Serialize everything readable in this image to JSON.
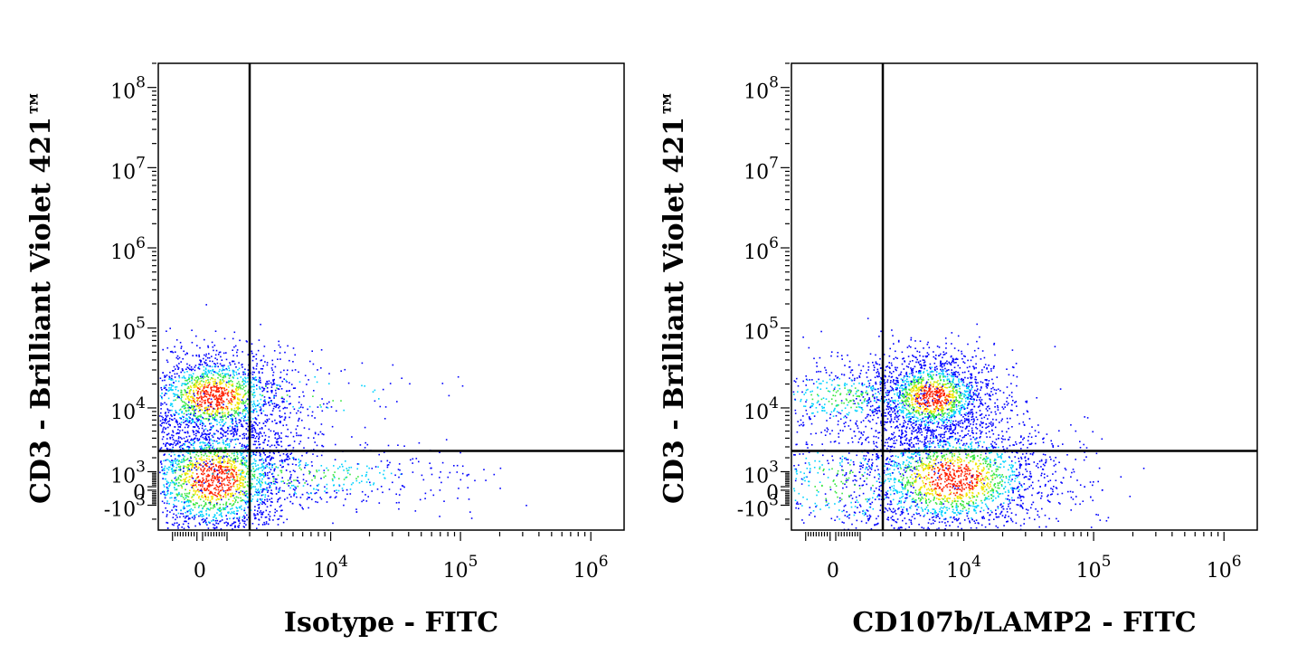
{
  "colors": {
    "background": "#ffffff",
    "axis": "#000000",
    "gate": "#000000",
    "density_low": "#0000ff",
    "density_mid_low": "#00d2ff",
    "density_mid": "#39e640",
    "density_mid_high": "#f2e600",
    "density_high": "#ff2000"
  },
  "chart_data": [
    {
      "type": "scatter",
      "title": "",
      "xlabel": "Isotype - FITC",
      "ylabel": "CD3 - Brilliant Violet 421™",
      "x_scale": "biexponential",
      "y_scale": "biexponential",
      "xlim": [
        -1600,
        1800000
      ],
      "ylim": [
        -3000,
        200000000
      ],
      "x_ticks": [
        {
          "label": "0",
          "value": 0
        },
        {
          "label": "10",
          "sup": "4",
          "value": 10000
        },
        {
          "label": "10",
          "sup": "5",
          "value": 100000
        },
        {
          "label": "10",
          "sup": "6",
          "value": 1000000
        }
      ],
      "y_ticks": [
        {
          "label": "-10",
          "sup": "3",
          "value": -1000
        },
        {
          "label": "0",
          "value": 0
        },
        {
          "label": "10",
          "sup": "3",
          "value": 1000
        },
        {
          "label": "10",
          "sup": "4",
          "value": 10000
        },
        {
          "label": "10",
          "sup": "5",
          "value": 100000
        },
        {
          "label": "10",
          "sup": "6",
          "value": 1000000
        },
        {
          "label": "10",
          "sup": "7",
          "value": 10000000
        },
        {
          "label": "10",
          "sup": "8",
          "value": 100000000
        }
      ],
      "gate": {
        "x": 2000,
        "y": 2600
      },
      "populations": [
        {
          "x_center": 500,
          "y_center": 14000,
          "x_spread": 0.55,
          "y_spread": 0.55,
          "count": 1700
        },
        {
          "x_center": 500,
          "y_center": 600,
          "x_spread": 0.6,
          "y_spread": 0.75,
          "count": 2300
        },
        {
          "x_center": 6000,
          "y_center": 800,
          "x_spread": 1.3,
          "y_spread": 0.4,
          "count": 450
        },
        {
          "x_center": 6000,
          "y_center": 15000,
          "x_spread": 1.3,
          "y_spread": 0.45,
          "count": 90
        }
      ]
    },
    {
      "type": "scatter",
      "title": "",
      "xlabel": "CD107b/LAMP2 - FITC",
      "ylabel": "CD3 - Brilliant Violet 421™",
      "x_scale": "biexponential",
      "y_scale": "biexponential",
      "xlim": [
        -1600,
        1800000
      ],
      "ylim": [
        -3000,
        200000000
      ],
      "x_ticks": [
        {
          "label": "0",
          "value": 0
        },
        {
          "label": "10",
          "sup": "4",
          "value": 10000
        },
        {
          "label": "10",
          "sup": "5",
          "value": 100000
        },
        {
          "label": "10",
          "sup": "6",
          "value": 1000000
        }
      ],
      "y_ticks": [
        {
          "label": "-10",
          "sup": "3",
          "value": -1000
        },
        {
          "label": "0",
          "value": 0
        },
        {
          "label": "10",
          "sup": "3",
          "value": 1000
        },
        {
          "label": "10",
          "sup": "4",
          "value": 10000
        },
        {
          "label": "10",
          "sup": "5",
          "value": 100000
        },
        {
          "label": "10",
          "sup": "6",
          "value": 1000000
        },
        {
          "label": "10",
          "sup": "7",
          "value": 10000000
        },
        {
          "label": "10",
          "sup": "8",
          "value": 100000000
        }
      ],
      "gate": {
        "x": 2000,
        "y": 2600
      },
      "populations": [
        {
          "x_center": 5500,
          "y_center": 14000,
          "x_spread": 0.45,
          "y_spread": 0.5,
          "count": 1700
        },
        {
          "x_center": 8000,
          "y_center": 600,
          "x_spread": 0.75,
          "y_spread": 0.7,
          "count": 2300
        },
        {
          "x_center": 300,
          "y_center": 14000,
          "x_spread": 0.7,
          "y_spread": 0.45,
          "count": 500
        },
        {
          "x_center": 300,
          "y_center": 300,
          "x_spread": 0.8,
          "y_spread": 0.8,
          "count": 450
        }
      ]
    }
  ]
}
